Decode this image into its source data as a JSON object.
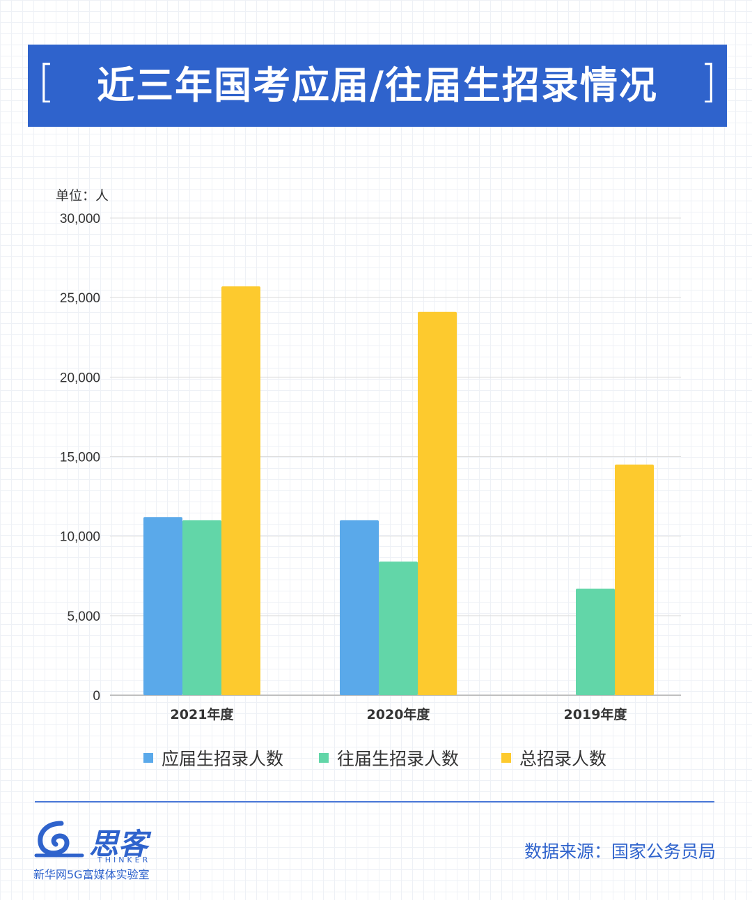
{
  "header": {
    "bracket_left": "[",
    "title": "近三年国考应届/往届生招录情况",
    "bracket_right": "]"
  },
  "unit_label": "单位：人",
  "colors": {
    "title_bg": "#2f63cc",
    "series_fresh": "#5aa9ea",
    "series_previous": "#62d6a8",
    "series_total": "#fdca2e",
    "accent_text": "#2f63cc"
  },
  "chart_data": {
    "type": "bar",
    "categories": [
      "2021年度",
      "2020年度",
      "2019年度"
    ],
    "series": [
      {
        "name": "应届生招录人数",
        "values": [
          11200,
          11000,
          0
        ]
      },
      {
        "name": "往届生招录人数",
        "values": [
          11000,
          8400,
          6700
        ]
      },
      {
        "name": "总招录人数",
        "values": [
          25700,
          24100,
          14500
        ]
      }
    ],
    "ylim": [
      0,
      30000
    ],
    "yticks": [
      0,
      5000,
      10000,
      15000,
      20000,
      25000,
      30000
    ],
    "ytick_labels": [
      "0",
      "5,000",
      "10,000",
      "15,000",
      "20,000",
      "25,000",
      "30,000"
    ],
    "grid": true,
    "legend_position": "bottom"
  },
  "footer": {
    "logo_name": "思客",
    "logo_en": "THINKER",
    "logo_sub": "新华网5G富媒体实验室",
    "source": "数据来源：国家公务员局"
  }
}
